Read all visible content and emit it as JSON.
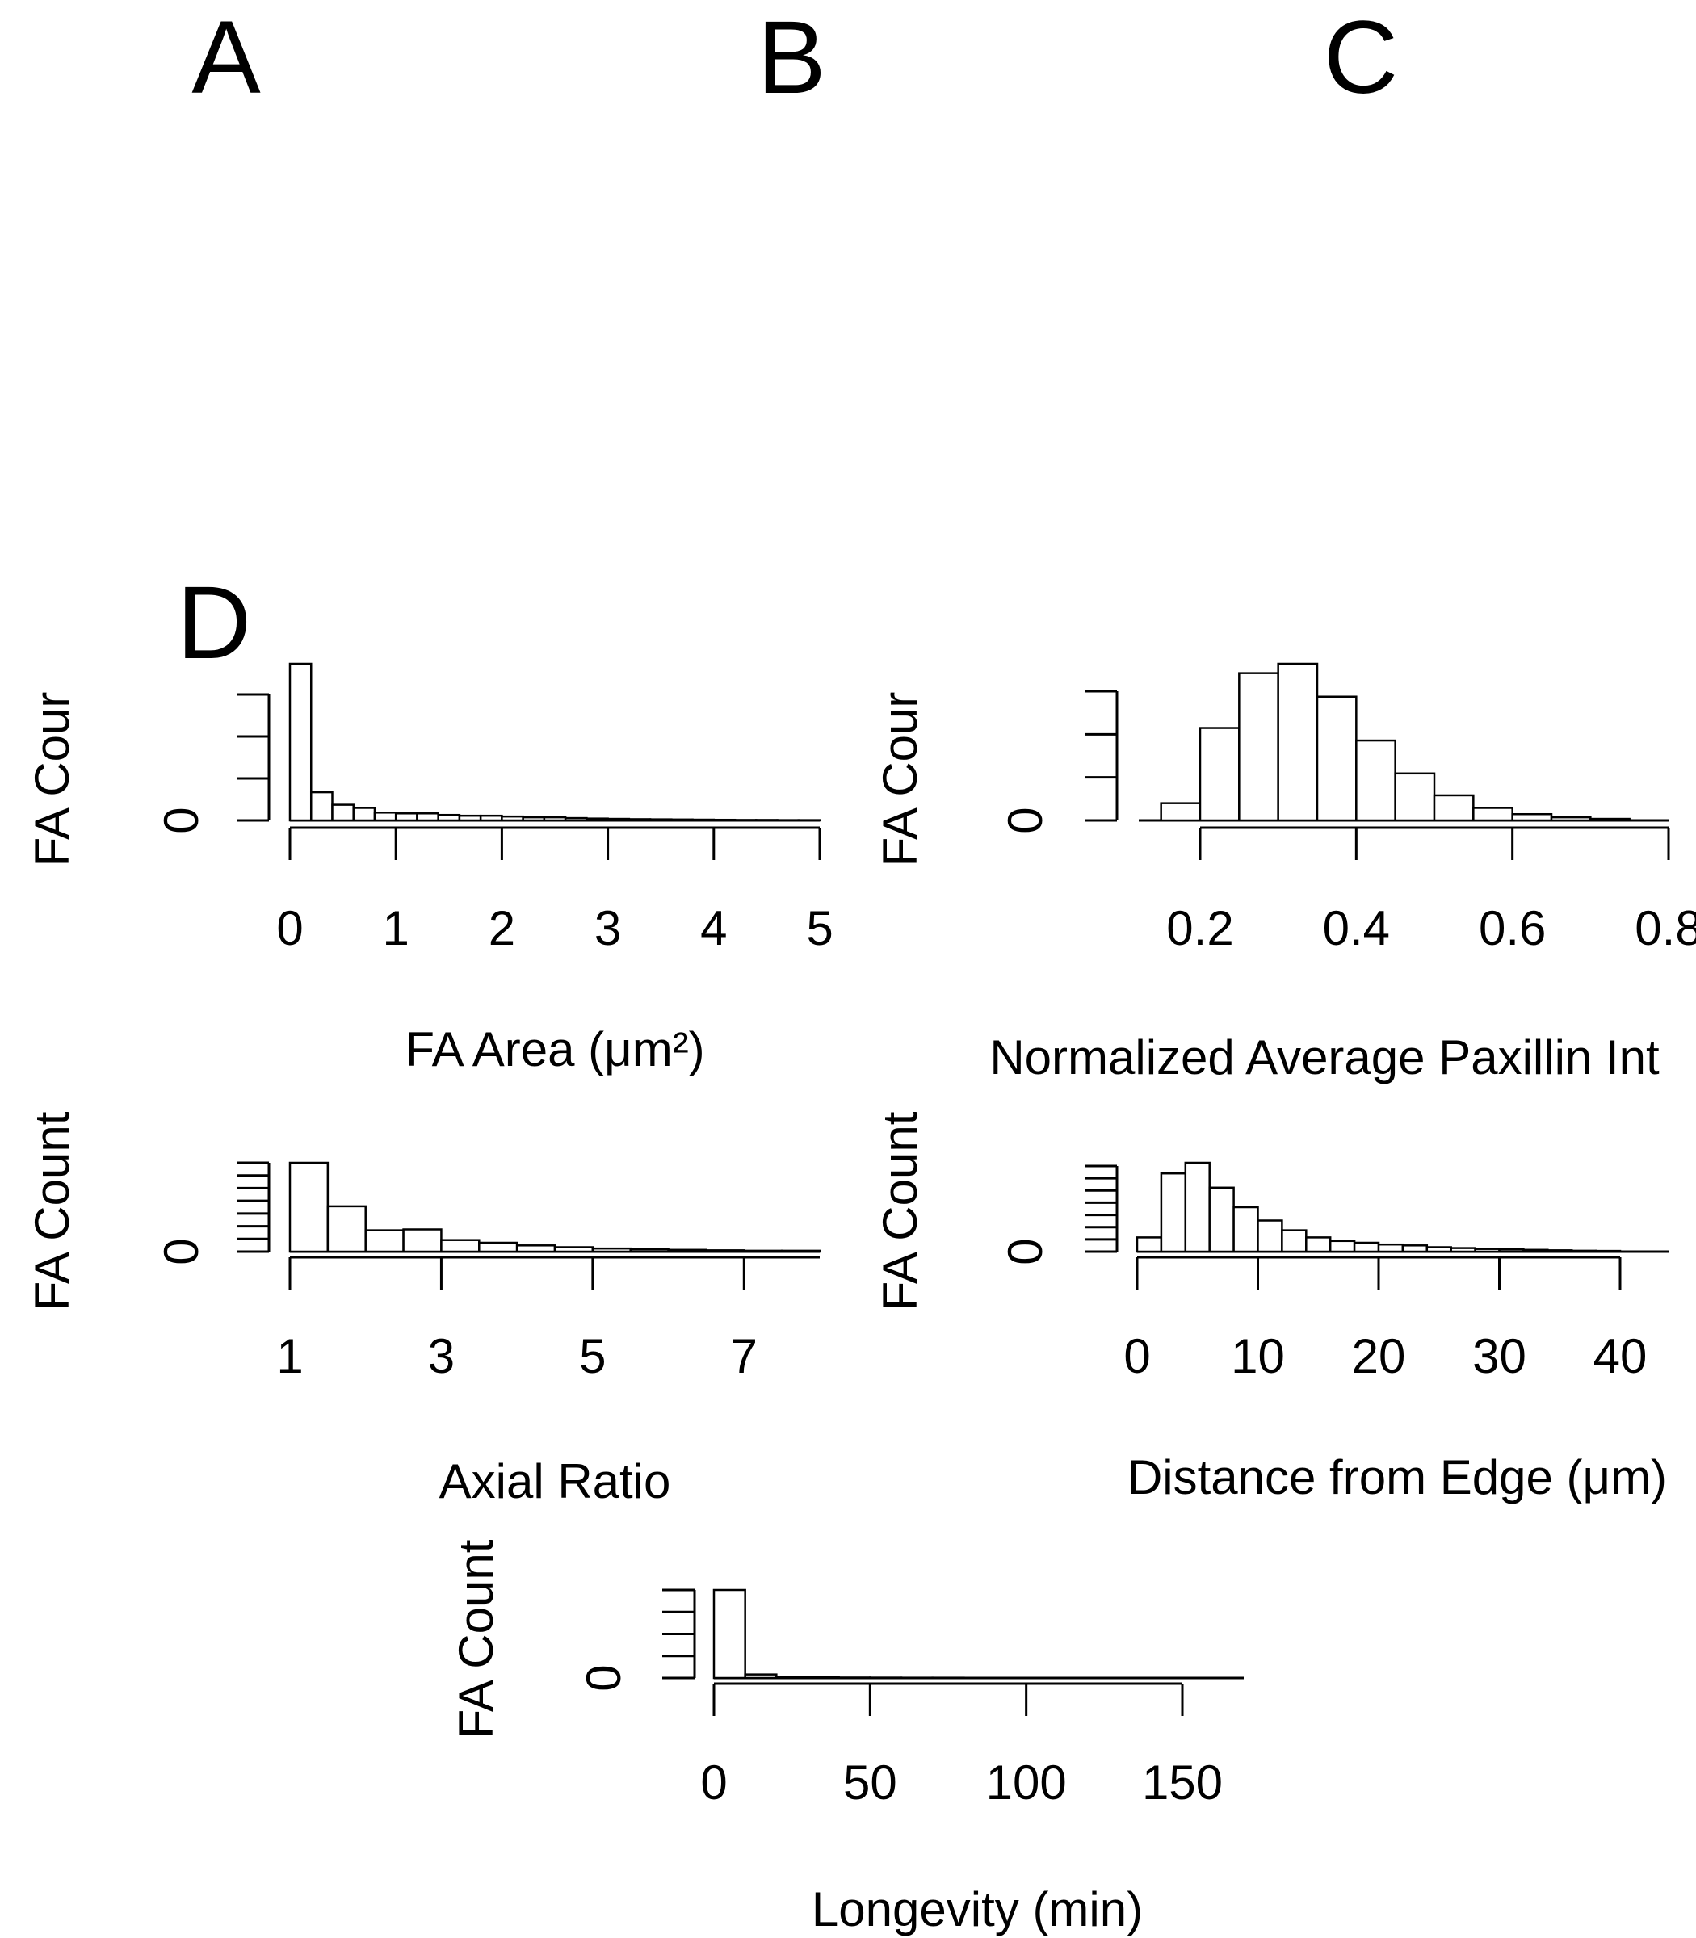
{
  "panel_labels": [
    "A",
    "B",
    "C",
    "D"
  ],
  "chart_data": [
    {
      "type": "bar",
      "xlabel": "FA Area (μm²)",
      "ylabel": "FA Cour",
      "xlim": [
        0,
        5
      ],
      "x_ticks": [
        "0",
        "1",
        "2",
        "3",
        "4",
        "5"
      ],
      "y_tick_labels": [
        "0"
      ],
      "y_tick_count": 4,
      "ylim": [
        0,
        1
      ],
      "bins": [
        {
          "x0": 0.0,
          "x1": 0.2,
          "value": 1.0
        },
        {
          "x0": 0.2,
          "x1": 0.4,
          "value": 0.18
        },
        {
          "x0": 0.4,
          "x1": 0.6,
          "value": 0.1
        },
        {
          "x0": 0.6,
          "x1": 0.8,
          "value": 0.08
        },
        {
          "x0": 0.8,
          "x1": 1.0,
          "value": 0.05
        },
        {
          "x0": 1.0,
          "x1": 1.2,
          "value": 0.045
        },
        {
          "x0": 1.2,
          "x1": 1.4,
          "value": 0.045
        },
        {
          "x0": 1.4,
          "x1": 1.6,
          "value": 0.035
        },
        {
          "x0": 1.6,
          "x1": 1.8,
          "value": 0.03
        },
        {
          "x0": 1.8,
          "x1": 2.0,
          "value": 0.03
        },
        {
          "x0": 2.0,
          "x1": 2.2,
          "value": 0.025
        },
        {
          "x0": 2.2,
          "x1": 2.4,
          "value": 0.02
        },
        {
          "x0": 2.4,
          "x1": 2.6,
          "value": 0.02
        },
        {
          "x0": 2.6,
          "x1": 2.8,
          "value": 0.015
        },
        {
          "x0": 2.8,
          "x1": 3.0,
          "value": 0.012
        },
        {
          "x0": 3.0,
          "x1": 3.2,
          "value": 0.01
        },
        {
          "x0": 3.2,
          "x1": 3.4,
          "value": 0.008
        },
        {
          "x0": 3.4,
          "x1": 3.6,
          "value": 0.007
        },
        {
          "x0": 3.6,
          "x1": 3.8,
          "value": 0.006
        },
        {
          "x0": 3.8,
          "x1": 4.0,
          "value": 0.005
        },
        {
          "x0": 4.0,
          "x1": 4.2,
          "value": 0.004
        },
        {
          "x0": 4.2,
          "x1": 4.4,
          "value": 0.003
        },
        {
          "x0": 4.4,
          "x1": 4.6,
          "value": 0.003
        },
        {
          "x0": 4.6,
          "x1": 4.8,
          "value": 0.002
        },
        {
          "x0": 4.8,
          "x1": 5.0,
          "value": 0.002
        }
      ]
    },
    {
      "type": "bar",
      "xlabel": "Normalized Average Paxillin Int",
      "ylabel": "FA Cour",
      "xlim": [
        0.2,
        0.8
      ],
      "x_ticks": [
        "0.2",
        "0.4",
        "0.6",
        "0.8"
      ],
      "y_tick_labels": [
        "0"
      ],
      "y_tick_count": 4,
      "ylim": [
        0,
        1
      ],
      "bins": [
        {
          "x0": 0.15,
          "x1": 0.2,
          "value": 0.11
        },
        {
          "x0": 0.2,
          "x1": 0.25,
          "value": 0.59
        },
        {
          "x0": 0.25,
          "x1": 0.3,
          "value": 0.94
        },
        {
          "x0": 0.3,
          "x1": 0.35,
          "value": 1.0
        },
        {
          "x0": 0.35,
          "x1": 0.4,
          "value": 0.79
        },
        {
          "x0": 0.4,
          "x1": 0.45,
          "value": 0.51
        },
        {
          "x0": 0.45,
          "x1": 0.5,
          "value": 0.3
        },
        {
          "x0": 0.5,
          "x1": 0.55,
          "value": 0.16
        },
        {
          "x0": 0.55,
          "x1": 0.6,
          "value": 0.08
        },
        {
          "x0": 0.6,
          "x1": 0.65,
          "value": 0.04
        },
        {
          "x0": 0.65,
          "x1": 0.7,
          "value": 0.02
        },
        {
          "x0": 0.7,
          "x1": 0.75,
          "value": 0.01
        }
      ]
    },
    {
      "type": "bar",
      "xlabel": "Axial Ratio",
      "ylabel": "FA Count",
      "xlim": [
        1,
        8
      ],
      "x_ticks": [
        "1",
        "3",
        "5",
        "7"
      ],
      "y_tick_labels": [
        "0"
      ],
      "y_tick_count": 8,
      "ylim": [
        0,
        1
      ],
      "bins": [
        {
          "x0": 1.0,
          "x1": 1.5,
          "value": 1.0
        },
        {
          "x0": 1.5,
          "x1": 2.0,
          "value": 0.51
        },
        {
          "x0": 2.0,
          "x1": 2.5,
          "value": 0.24
        },
        {
          "x0": 2.5,
          "x1": 3.0,
          "value": 0.25
        },
        {
          "x0": 3.0,
          "x1": 3.5,
          "value": 0.13
        },
        {
          "x0": 3.5,
          "x1": 4.0,
          "value": 0.1
        },
        {
          "x0": 4.0,
          "x1": 4.5,
          "value": 0.07
        },
        {
          "x0": 4.5,
          "x1": 5.0,
          "value": 0.05
        },
        {
          "x0": 5.0,
          "x1": 5.5,
          "value": 0.035
        },
        {
          "x0": 5.5,
          "x1": 6.0,
          "value": 0.025
        },
        {
          "x0": 6.0,
          "x1": 6.5,
          "value": 0.02
        },
        {
          "x0": 6.5,
          "x1": 7.0,
          "value": 0.015
        },
        {
          "x0": 7.0,
          "x1": 7.5,
          "value": 0.01
        },
        {
          "x0": 7.5,
          "x1": 8.0,
          "value": 0.01
        }
      ]
    },
    {
      "type": "bar",
      "xlabel": "Distance from Edge (μm)",
      "ylabel": "FA Count",
      "xlim": [
        0,
        40
      ],
      "x_ticks": [
        "0",
        "10",
        "20",
        "30",
        "40"
      ],
      "y_tick_labels": [
        "0"
      ],
      "y_tick_count": 8,
      "ylim": [
        0,
        1
      ],
      "bins": [
        {
          "x0": 0,
          "x1": 2,
          "value": 0.16
        },
        {
          "x0": 2,
          "x1": 4,
          "value": 0.88
        },
        {
          "x0": 4,
          "x1": 6,
          "value": 1.0
        },
        {
          "x0": 6,
          "x1": 8,
          "value": 0.72
        },
        {
          "x0": 8,
          "x1": 10,
          "value": 0.5
        },
        {
          "x0": 10,
          "x1": 12,
          "value": 0.35
        },
        {
          "x0": 12,
          "x1": 14,
          "value": 0.24
        },
        {
          "x0": 14,
          "x1": 16,
          "value": 0.16
        },
        {
          "x0": 16,
          "x1": 18,
          "value": 0.12
        },
        {
          "x0": 18,
          "x1": 20,
          "value": 0.1
        },
        {
          "x0": 20,
          "x1": 22,
          "value": 0.08
        },
        {
          "x0": 22,
          "x1": 24,
          "value": 0.07
        },
        {
          "x0": 24,
          "x1": 26,
          "value": 0.05
        },
        {
          "x0": 26,
          "x1": 28,
          "value": 0.04
        },
        {
          "x0": 28,
          "x1": 30,
          "value": 0.03
        },
        {
          "x0": 30,
          "x1": 32,
          "value": 0.025
        },
        {
          "x0": 32,
          "x1": 34,
          "value": 0.02
        },
        {
          "x0": 34,
          "x1": 36,
          "value": 0.015
        },
        {
          "x0": 36,
          "x1": 38,
          "value": 0.01
        },
        {
          "x0": 38,
          "x1": 40,
          "value": 0.008
        }
      ]
    },
    {
      "type": "bar",
      "xlabel": "Longevity (min)",
      "ylabel": "FA Count",
      "xlim": [
        0,
        150
      ],
      "x_ticks": [
        "0",
        "50",
        "100",
        "150"
      ],
      "y_tick_labels": [
        "0"
      ],
      "y_tick_count": 5,
      "ylim": [
        0,
        1
      ],
      "bins": [
        {
          "x0": 0,
          "x1": 10,
          "value": 1.0
        },
        {
          "x0": 10,
          "x1": 20,
          "value": 0.04
        },
        {
          "x0": 20,
          "x1": 30,
          "value": 0.015
        },
        {
          "x0": 30,
          "x1": 40,
          "value": 0.008
        },
        {
          "x0": 40,
          "x1": 50,
          "value": 0.005
        },
        {
          "x0": 50,
          "x1": 60,
          "value": 0.004
        },
        {
          "x0": 60,
          "x1": 70,
          "value": 0.003
        },
        {
          "x0": 70,
          "x1": 80,
          "value": 0.003
        },
        {
          "x0": 80,
          "x1": 90,
          "value": 0.002
        },
        {
          "x0": 90,
          "x1": 100,
          "value": 0.002
        },
        {
          "x0": 100,
          "x1": 110,
          "value": 0.002
        },
        {
          "x0": 110,
          "x1": 120,
          "value": 0.001
        },
        {
          "x0": 120,
          "x1": 130,
          "value": 0.001
        },
        {
          "x0": 130,
          "x1": 140,
          "value": 0.001
        },
        {
          "x0": 140,
          "x1": 150,
          "value": 0.001
        }
      ]
    }
  ]
}
